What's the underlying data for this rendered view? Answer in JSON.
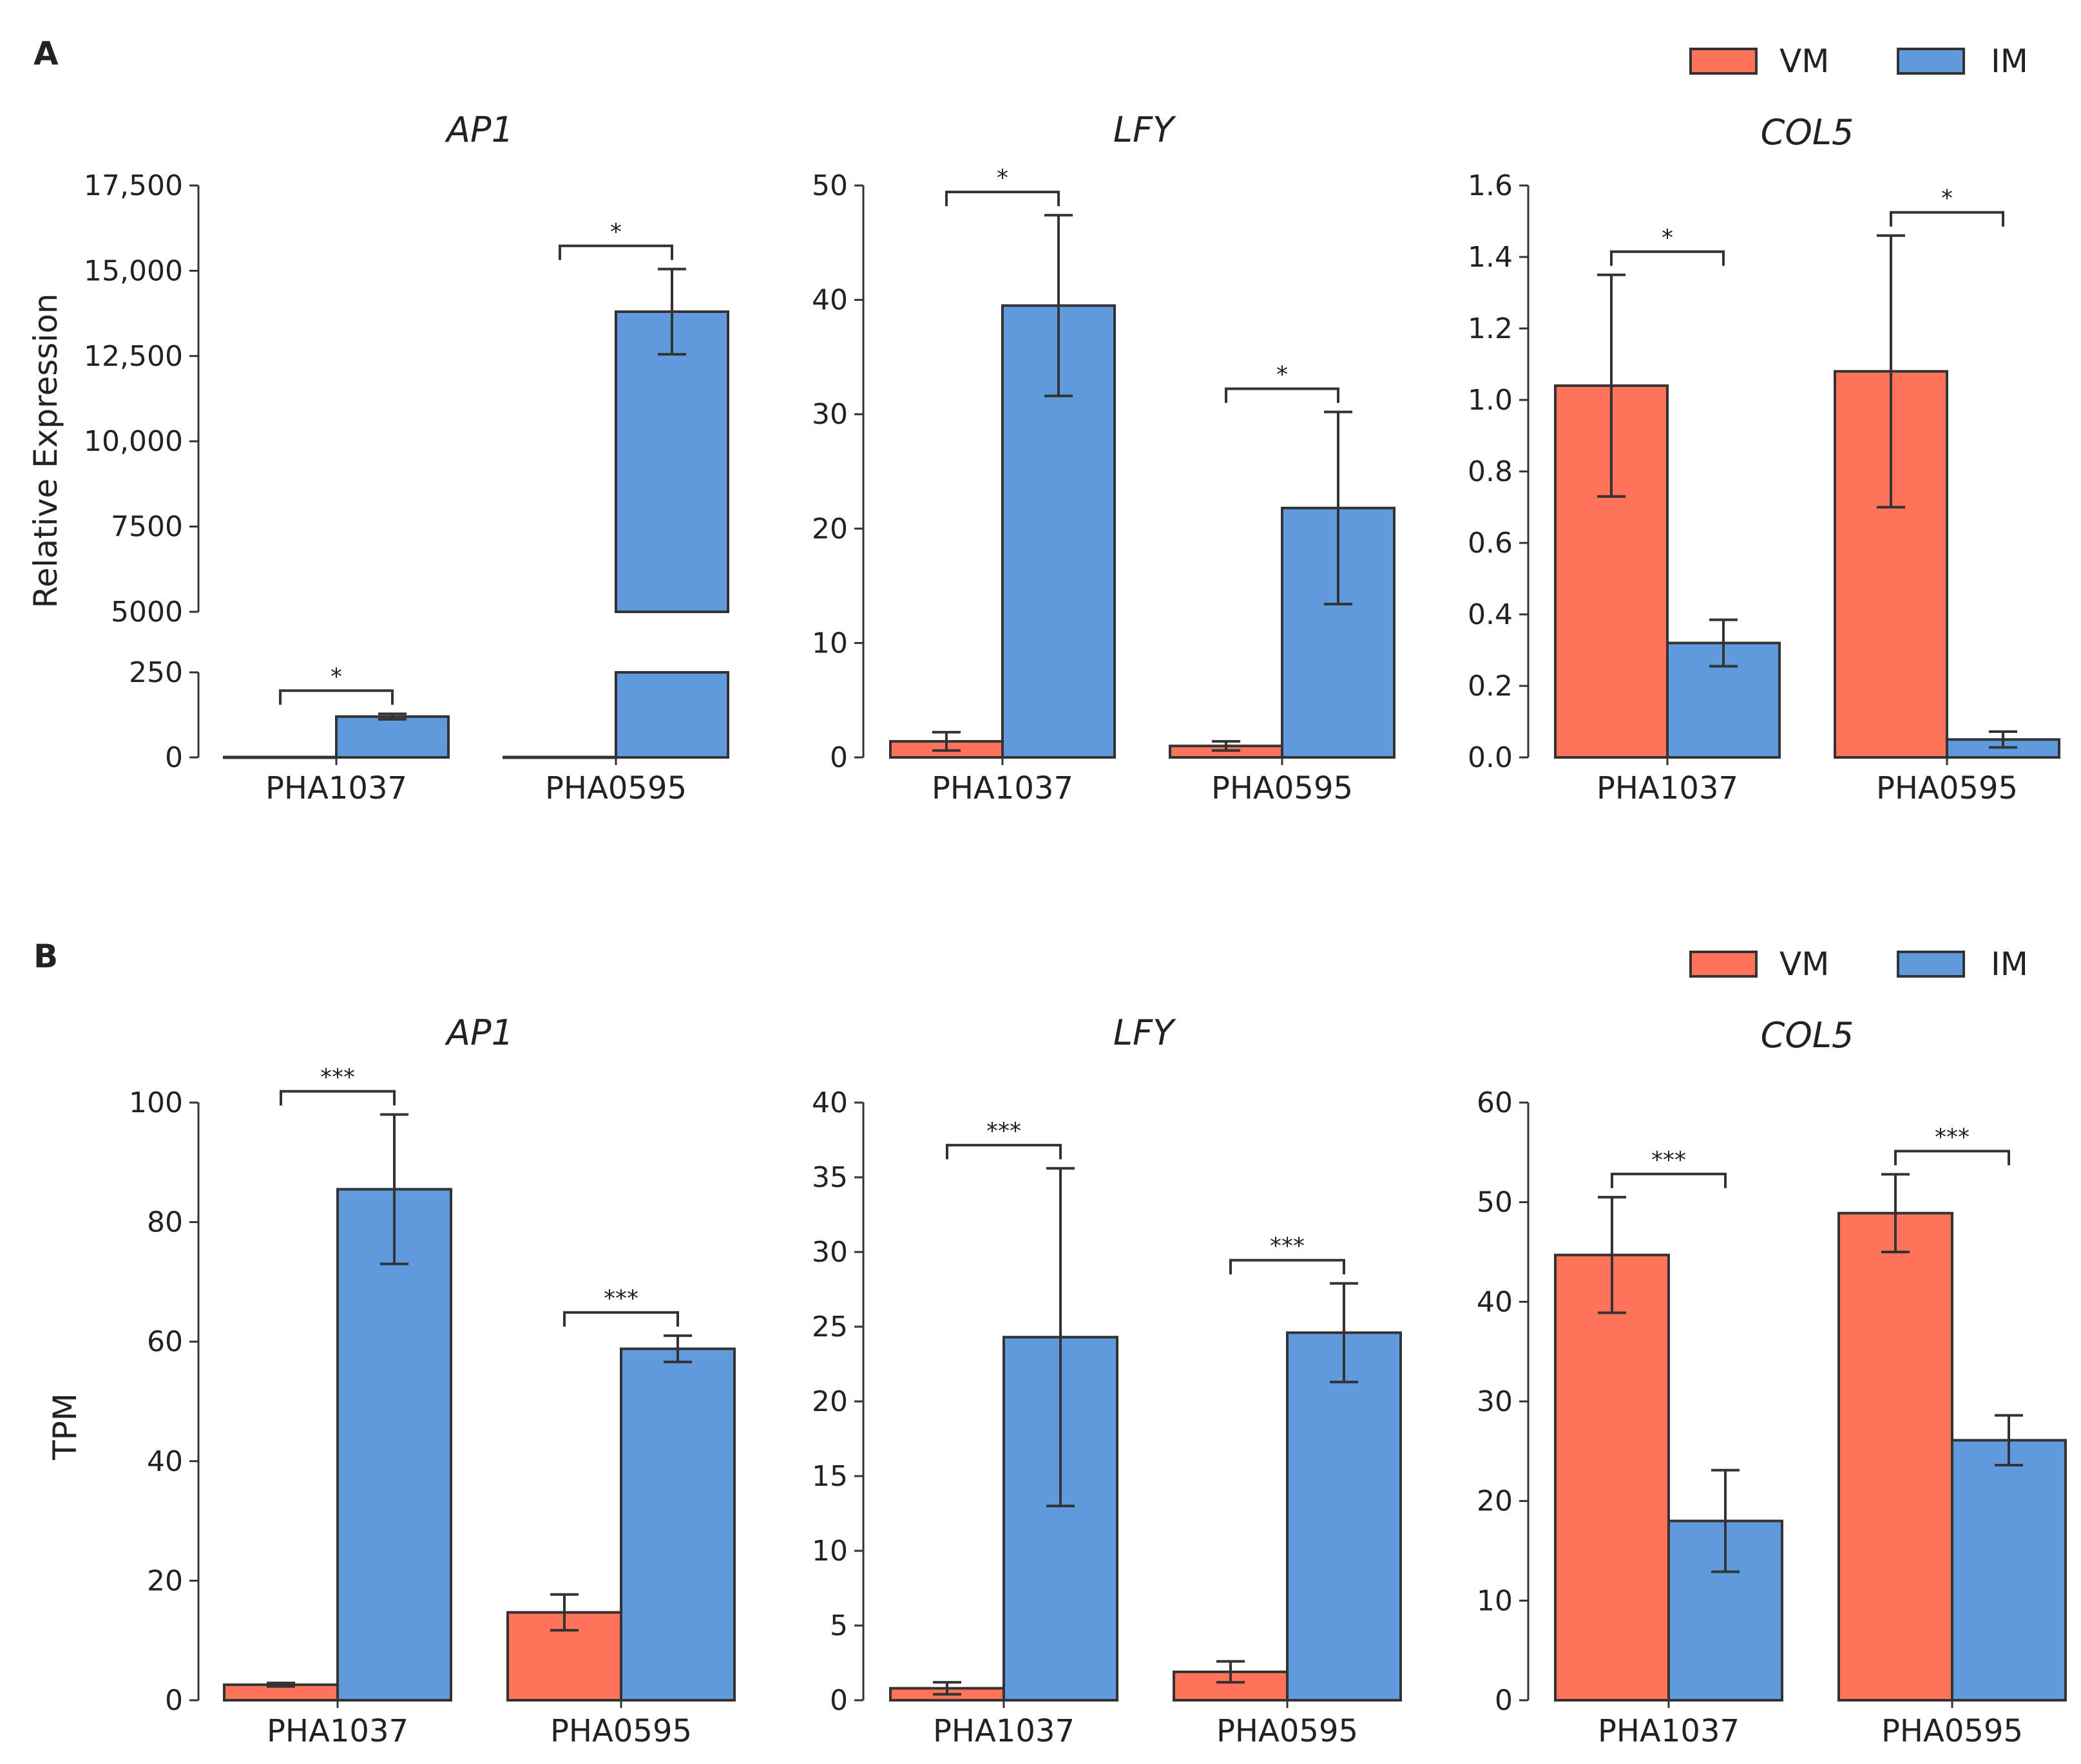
{
  "legend": {
    "vm_label": "VM",
    "im_label": "IM"
  },
  "colors": {
    "vm": "#FF735A",
    "im": "#5F9BDC",
    "line": "#333333"
  },
  "panels": [
    {
      "letter": "A",
      "ylabel": "Relative Expression",
      "charts": [
        {
          "title": "AP1",
          "yticks": [
            {
              "v": 0,
              "label": "0"
            },
            {
              "v": 250,
              "label": "250"
            },
            {
              "v": 5000,
              "label": "5000"
            },
            {
              "v": 7500,
              "label": "7500"
            },
            {
              "v": 10000,
              "label": "10,000"
            },
            {
              "v": 12500,
              "label": "12,500"
            },
            {
              "v": 15000,
              "label": "15,000"
            },
            {
              "v": 17500,
              "label": "17,500"
            }
          ]
        },
        {
          "title": "LFY",
          "yticks": [
            {
              "v": 0,
              "label": "0"
            },
            {
              "v": 10,
              "label": "10"
            },
            {
              "v": 20,
              "label": "20"
            },
            {
              "v": 30,
              "label": "30"
            },
            {
              "v": 40,
              "label": "40"
            },
            {
              "v": 50,
              "label": "50"
            }
          ]
        },
        {
          "title": "COL5",
          "yticks": [
            {
              "v": 0,
              "label": "0.0"
            },
            {
              "v": 0.2,
              "label": "0.2"
            },
            {
              "v": 0.4,
              "label": "0.4"
            },
            {
              "v": 0.6,
              "label": "0.6"
            },
            {
              "v": 0.8,
              "label": "0.8"
            },
            {
              "v": 1.0,
              "label": "1.0"
            },
            {
              "v": 1.2,
              "label": "1.2"
            },
            {
              "v": 1.4,
              "label": "1.4"
            },
            {
              "v": 1.6,
              "label": "1.6"
            }
          ]
        }
      ]
    },
    {
      "letter": "B",
      "ylabel": "TPM",
      "charts": [
        {
          "title": "AP1",
          "yticks": [
            {
              "v": 0,
              "label": "0"
            },
            {
              "v": 20,
              "label": "20"
            },
            {
              "v": 40,
              "label": "40"
            },
            {
              "v": 60,
              "label": "60"
            },
            {
              "v": 80,
              "label": "80"
            },
            {
              "v": 100,
              "label": "100"
            }
          ]
        },
        {
          "title": "LFY",
          "yticks": [
            {
              "v": 0,
              "label": "0"
            },
            {
              "v": 5,
              "label": "5"
            },
            {
              "v": 10,
              "label": "10"
            },
            {
              "v": 15,
              "label": "15"
            },
            {
              "v": 20,
              "label": "20"
            },
            {
              "v": 25,
              "label": "25"
            },
            {
              "v": 30,
              "label": "30"
            },
            {
              "v": 35,
              "label": "35"
            },
            {
              "v": 40,
              "label": "40"
            }
          ]
        },
        {
          "title": "COL5",
          "yticks": [
            {
              "v": 0,
              "label": "0"
            },
            {
              "v": 10,
              "label": "10"
            },
            {
              "v": 20,
              "label": "20"
            },
            {
              "v": 30,
              "label": "30"
            },
            {
              "v": 40,
              "label": "40"
            },
            {
              "v": 50,
              "label": "50"
            },
            {
              "v": 60,
              "label": "60"
            }
          ]
        }
      ]
    }
  ],
  "chart_data": [
    {
      "type": "bar",
      "panel": "A",
      "title": "AP1",
      "ylabel": "Relative Expression",
      "ylim": [
        0,
        17500
      ],
      "broken_axis": [
        250,
        5000
      ],
      "categories": [
        "PHA1037",
        "PHA0595"
      ],
      "series": [
        {
          "name": "VM",
          "values": [
            1,
            1
          ],
          "errors": [
            0,
            0
          ]
        },
        {
          "name": "IM",
          "values": [
            120,
            13800
          ],
          "errors": [
            8,
            1250
          ]
        }
      ],
      "significance": [
        "*",
        "*"
      ]
    },
    {
      "type": "bar",
      "panel": "A",
      "title": "LFY",
      "ylabel": "Relative Expression",
      "ylim": [
        0,
        50
      ],
      "categories": [
        "PHA1037",
        "PHA0595"
      ],
      "series": [
        {
          "name": "VM",
          "values": [
            1.4,
            1.0
          ],
          "errors": [
            0.8,
            0.4
          ]
        },
        {
          "name": "IM",
          "values": [
            39.5,
            21.8
          ],
          "errors": [
            7.9,
            8.4
          ]
        }
      ],
      "significance": [
        "*",
        "*"
      ]
    },
    {
      "type": "bar",
      "panel": "A",
      "title": "COL5",
      "ylabel": "Relative Expression",
      "ylim": [
        0,
        1.6
      ],
      "categories": [
        "PHA1037",
        "PHA0595"
      ],
      "series": [
        {
          "name": "VM",
          "values": [
            1.04,
            1.08
          ],
          "errors": [
            0.31,
            0.38
          ]
        },
        {
          "name": "IM",
          "values": [
            0.32,
            0.05
          ],
          "errors": [
            0.065,
            0.022
          ]
        }
      ],
      "significance": [
        "*",
        "*"
      ]
    },
    {
      "type": "bar",
      "panel": "B",
      "title": "AP1",
      "ylabel": "TPM",
      "ylim": [
        0,
        100
      ],
      "categories": [
        "PHA1037",
        "PHA0595"
      ],
      "series": [
        {
          "name": "VM",
          "values": [
            2.6,
            14.7
          ],
          "errors": [
            0.3,
            3.0
          ]
        },
        {
          "name": "IM",
          "values": [
            85.5,
            58.8
          ],
          "errors": [
            12.5,
            2.2
          ]
        }
      ],
      "significance": [
        "***",
        "***"
      ]
    },
    {
      "type": "bar",
      "panel": "B",
      "title": "LFY",
      "ylabel": "TPM",
      "ylim": [
        0,
        40
      ],
      "categories": [
        "PHA1037",
        "PHA0595"
      ],
      "series": [
        {
          "name": "VM",
          "values": [
            0.8,
            1.9
          ],
          "errors": [
            0.4,
            0.7
          ]
        },
        {
          "name": "IM",
          "values": [
            24.3,
            24.6
          ],
          "errors": [
            11.3,
            3.3
          ]
        }
      ],
      "significance": [
        "***",
        "***"
      ]
    },
    {
      "type": "bar",
      "panel": "B",
      "title": "COL5",
      "ylabel": "TPM",
      "ylim": [
        0,
        60
      ],
      "categories": [
        "PHA1037",
        "PHA0595"
      ],
      "series": [
        {
          "name": "VM",
          "values": [
            44.7,
            48.9
          ],
          "errors": [
            5.8,
            3.9
          ]
        },
        {
          "name": "IM",
          "values": [
            18.0,
            26.1
          ],
          "errors": [
            5.1,
            2.5
          ]
        }
      ],
      "significance": [
        "***",
        "***"
      ]
    }
  ]
}
